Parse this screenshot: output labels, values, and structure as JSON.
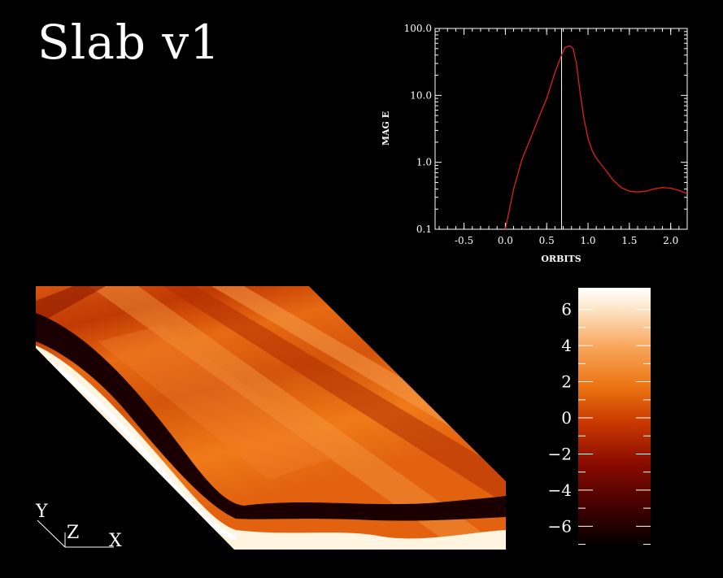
{
  "title": "Slab v1",
  "colors": {
    "background": "#000000",
    "curve": "#e0201c",
    "marker": "#ffffff",
    "colormap": [
      "#000000",
      "#3a0000",
      "#8a0a00",
      "#c83800",
      "#ec7410",
      "#f8a860",
      "#fde6c8",
      "#ffffff"
    ]
  },
  "chart_data": [
    {
      "type": "line",
      "title": "",
      "xlabel": "ORBITS",
      "ylabel": "MAG E",
      "xlim": [
        -0.85,
        2.2
      ],
      "ylim": [
        0.1,
        100.0
      ],
      "yscale": "log",
      "x_ticks": [
        "-0.5",
        "0.0",
        "0.5",
        "1.0",
        "1.5",
        "2.0"
      ],
      "y_ticks": [
        "0.1",
        "1.0",
        "10.0",
        "100.0"
      ],
      "vertical_line_x": 0.68,
      "series": [
        {
          "x": [
            0.0,
            0.1,
            0.2,
            0.3,
            0.4,
            0.5,
            0.6,
            0.68,
            0.72,
            0.78,
            0.82,
            0.86,
            0.9,
            0.95,
            1.0,
            1.05,
            1.1,
            1.2,
            1.3,
            1.4,
            1.5,
            1.6,
            1.7,
            1.8,
            1.9,
            2.0,
            2.1,
            2.2
          ],
          "y": [
            0.1,
            0.4,
            1.1,
            2.2,
            4.5,
            9.0,
            22.0,
            40.0,
            52.0,
            55.0,
            50.0,
            30.0,
            12.0,
            4.5,
            2.3,
            1.5,
            1.15,
            0.8,
            0.55,
            0.42,
            0.37,
            0.36,
            0.37,
            0.4,
            0.42,
            0.41,
            0.38,
            0.34
          ]
        }
      ]
    },
    {
      "type": "heatmap",
      "colorbar_ticks": [
        "6",
        "4",
        "2",
        "0",
        "−2",
        "−4",
        "−6"
      ],
      "colorbar_range": [
        -7.2,
        7.2
      ],
      "axes_labels": [
        "Y",
        "Z",
        "X"
      ]
    }
  ]
}
